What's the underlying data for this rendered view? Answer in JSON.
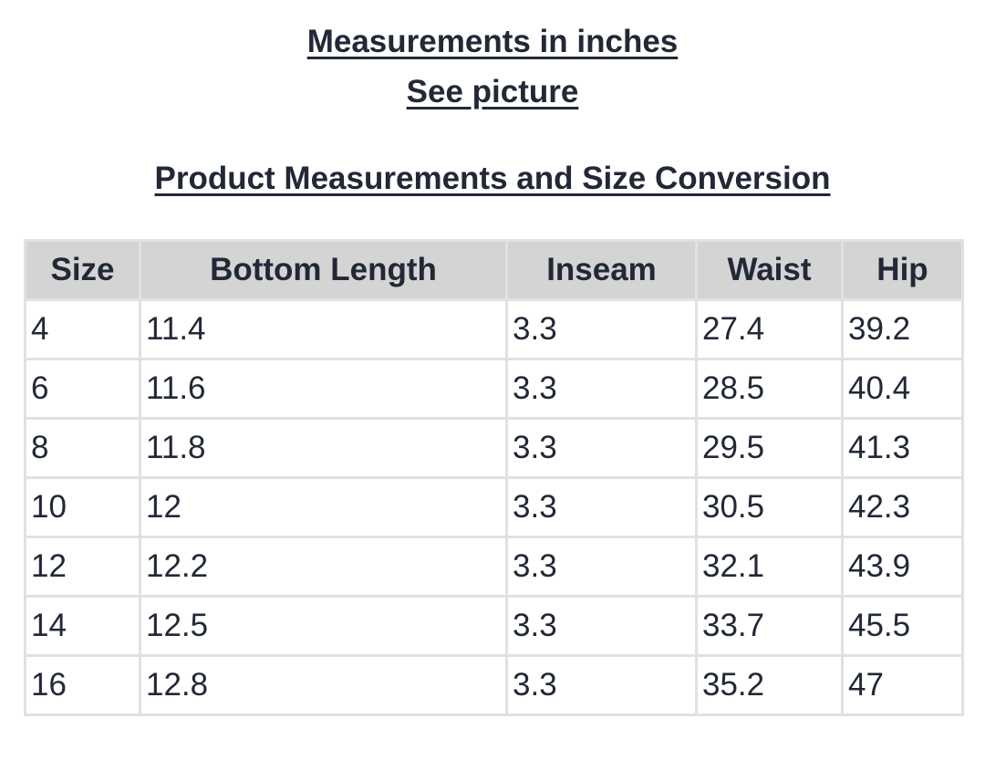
{
  "header": {
    "title": "Measurements in inches",
    "subtitle": "See picture",
    "heading": "Product Measurements and Size Conversion"
  },
  "table": {
    "columns": [
      "Size",
      "Bottom Length",
      "Inseam",
      "Waist",
      "Hip"
    ],
    "rows": [
      [
        "4",
        "11.4",
        "3.3",
        "27.4",
        "39.2"
      ],
      [
        "6",
        "11.6",
        "3.3",
        "28.5",
        "40.4"
      ],
      [
        "8",
        "11.8",
        "3.3",
        "29.5",
        "41.3"
      ],
      [
        "10",
        "12",
        "3.3",
        "30.5",
        "42.3"
      ],
      [
        "12",
        "12.2",
        "3.3",
        "32.1",
        "43.9"
      ],
      [
        "14",
        "12.5",
        "3.3",
        "33.7",
        "45.5"
      ],
      [
        "16",
        "12.8",
        "3.3",
        "35.2",
        "47"
      ]
    ]
  }
}
